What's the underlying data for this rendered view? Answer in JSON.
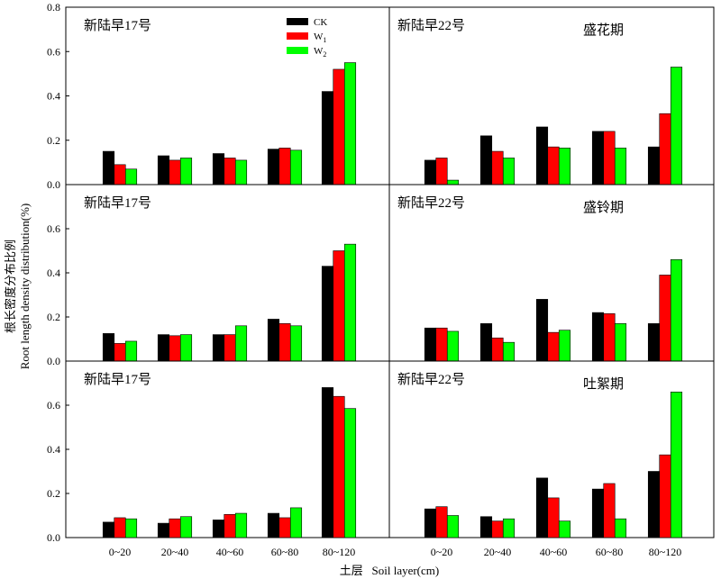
{
  "figure": {
    "ylabel_cn": "根长密度分布比例",
    "ylabel_en": "Root length density distribution(%)",
    "xlabel": "土层   Soil layer(cm)"
  },
  "colors": {
    "CK": "#000000",
    "W1": "#ff0000",
    "W2": "#00ff00"
  },
  "legend": [
    {
      "key": "CK",
      "label": "CK",
      "sub": ""
    },
    {
      "key": "W1",
      "label": "W",
      "sub": "1"
    },
    {
      "key": "W2",
      "label": "W",
      "sub": "2"
    }
  ],
  "chart_data": [
    {
      "type": "bar",
      "title": "新陆早17号",
      "stage": "",
      "categories": [
        "0~20",
        "20~40",
        "40~60",
        "60~80",
        "80~120"
      ],
      "ylim": [
        0,
        0.8
      ],
      "yticks": [
        "0.0",
        "0.2",
        "0.4",
        "0.6",
        "0.8"
      ],
      "series": [
        {
          "name": "CK",
          "values": [
            0.15,
            0.13,
            0.14,
            0.16,
            0.42
          ]
        },
        {
          "name": "W1",
          "values": [
            0.09,
            0.11,
            0.12,
            0.165,
            0.52
          ]
        },
        {
          "name": "W2",
          "values": [
            0.07,
            0.12,
            0.11,
            0.155,
            0.55
          ]
        }
      ]
    },
    {
      "type": "bar",
      "title": "新陆早22号",
      "stage": "盛花期",
      "categories": [
        "0~20",
        "20~40",
        "40~60",
        "60~80",
        "80~120"
      ],
      "ylim": [
        0,
        0.8
      ],
      "yticks": [
        "0.0",
        "0.2",
        "0.4",
        "0.6",
        "0.8"
      ],
      "series": [
        {
          "name": "CK",
          "values": [
            0.11,
            0.22,
            0.26,
            0.24,
            0.17
          ]
        },
        {
          "name": "W1",
          "values": [
            0.12,
            0.15,
            0.17,
            0.24,
            0.32
          ]
        },
        {
          "name": "W2",
          "values": [
            0.02,
            0.12,
            0.165,
            0.165,
            0.53
          ]
        }
      ]
    },
    {
      "type": "bar",
      "title": "新陆早17号",
      "stage": "",
      "categories": [
        "0~20",
        "20~40",
        "40~60",
        "60~80",
        "80~120"
      ],
      "ylim": [
        0,
        0.8
      ],
      "yticks": [
        "0.0",
        "0.2",
        "0.4",
        "0.6"
      ],
      "series": [
        {
          "name": "CK",
          "values": [
            0.125,
            0.12,
            0.12,
            0.19,
            0.43
          ]
        },
        {
          "name": "W1",
          "values": [
            0.08,
            0.115,
            0.12,
            0.17,
            0.5
          ]
        },
        {
          "name": "W2",
          "values": [
            0.09,
            0.12,
            0.16,
            0.16,
            0.53
          ]
        }
      ]
    },
    {
      "type": "bar",
      "title": "新陆早22号",
      "stage": "盛铃期",
      "categories": [
        "0~20",
        "20~40",
        "40~60",
        "60~80",
        "80~120"
      ],
      "ylim": [
        0,
        0.8
      ],
      "yticks": [
        "0.0",
        "0.2",
        "0.4",
        "0.6"
      ],
      "series": [
        {
          "name": "CK",
          "values": [
            0.15,
            0.17,
            0.28,
            0.22,
            0.17
          ]
        },
        {
          "name": "W1",
          "values": [
            0.15,
            0.105,
            0.13,
            0.215,
            0.39
          ]
        },
        {
          "name": "W2",
          "values": [
            0.135,
            0.085,
            0.14,
            0.17,
            0.46
          ]
        }
      ]
    },
    {
      "type": "bar",
      "title": "新陆早17号",
      "stage": "",
      "categories": [
        "0~20",
        "20~40",
        "40~60",
        "60~80",
        "80~120"
      ],
      "ylim": [
        0,
        0.8
      ],
      "yticks": [
        "0.0",
        "0.2",
        "0.4",
        "0.6"
      ],
      "series": [
        {
          "name": "CK",
          "values": [
            0.07,
            0.065,
            0.08,
            0.11,
            0.68
          ]
        },
        {
          "name": "W1",
          "values": [
            0.09,
            0.085,
            0.105,
            0.09,
            0.64
          ]
        },
        {
          "name": "W2",
          "values": [
            0.085,
            0.095,
            0.11,
            0.135,
            0.585
          ]
        }
      ]
    },
    {
      "type": "bar",
      "title": "新陆早22号",
      "stage": "吐絮期",
      "categories": [
        "0~20",
        "20~40",
        "40~60",
        "60~80",
        "80~120"
      ],
      "ylim": [
        0,
        0.8
      ],
      "yticks": [
        "0.0",
        "0.2",
        "0.4",
        "0.6"
      ],
      "series": [
        {
          "name": "CK",
          "values": [
            0.13,
            0.095,
            0.27,
            0.22,
            0.3
          ]
        },
        {
          "name": "W1",
          "values": [
            0.14,
            0.075,
            0.18,
            0.245,
            0.375
          ]
        },
        {
          "name": "W2",
          "values": [
            0.1,
            0.085,
            0.075,
            0.085,
            0.66
          ]
        }
      ]
    }
  ]
}
